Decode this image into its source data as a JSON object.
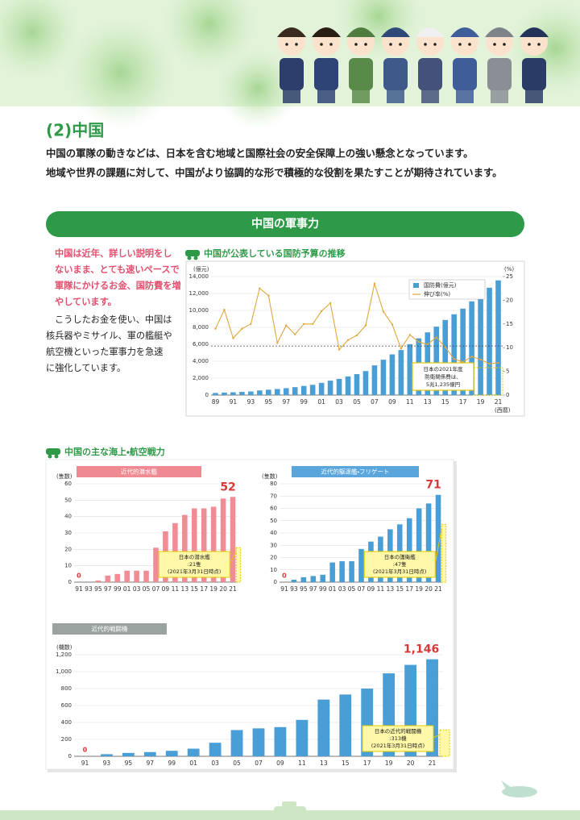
{
  "header": {
    "title": "(2)中国",
    "paragraphs": [
      "中国の軍隊の動きなどは、日本を含む地域と国際社会の安全保障上の強い懸念となっています。",
      "地域や世界の課題に対して、中国がより協調的な形で積極的な役割を果たすことが期待されています。"
    ]
  },
  "section": {
    "title": "中国の軍事力",
    "lead": [
      "中国は近年、詳しい説明をし",
      "ないまま、とても速いペースで",
      "軍隊にかけるお金、国防費を増",
      "やしています。"
    ],
    "body": [
      "こうしたお金を使い、中国は",
      "核兵器やミサイル、軍の艦艇や",
      "航空機といった軍事力を急速",
      "に強化しています。"
    ]
  },
  "subsection": {
    "title": "中国の主な海上・航空戦力"
  },
  "chart_data": [
    {
      "type": "bar",
      "title": "中国が公表している国防予算の推移",
      "categories": [
        "89",
        null,
        "91",
        null,
        "93",
        null,
        "95",
        null,
        "97",
        null,
        "99",
        null,
        "01",
        null,
        "03",
        null,
        "05",
        null,
        "07",
        null,
        "09",
        null,
        "11",
        null,
        "13",
        null,
        "15",
        null,
        "17",
        null,
        "19",
        null,
        "21"
      ],
      "series": [
        {
          "name": "国防費(億元)",
          "color": "#4a9ed6",
          "values": [
            251,
            290,
            330,
            378,
            426,
            551,
            637,
            720,
            813,
            935,
            1077,
            1212,
            1442,
            1708,
            1908,
            2200,
            2475,
            2838,
            3509,
            4178,
            4807,
            5321,
            6011,
            6703,
            7410,
            8082,
            8869,
            9544,
            10211,
            11070,
            11899,
            12680,
            13553
          ]
        },
        {
          "name": "伸び率(%)",
          "color": "#e0a83c",
          "type": "line",
          "axis": "y2",
          "values": [
            14,
            18,
            12,
            14,
            15,
            22.5,
            21,
            11,
            14.7,
            12.8,
            15,
            15,
            17.7,
            19.4,
            9.6,
            11.6,
            12.6,
            14.7,
            23.5,
            17.6,
            14.9,
            9.8,
            12.7,
            11.2,
            10.7,
            12.2,
            10.1,
            7.6,
            7,
            8.1,
            7.5,
            6.6,
            6.8
          ]
        }
      ],
      "ylim": [
        0,
        14000
      ],
      "yticks": [
        0,
        {
          "value": 2000,
          "label": "2,000"
        },
        {
          "value": 4000,
          "label": "4,000"
        },
        {
          "value": 6000,
          "label": "6,000"
        },
        {
          "value": 8000,
          "label": "8,000"
        },
        {
          "value": 10000,
          "label": "10,000"
        },
        {
          "value": 12000,
          "label": "12,000"
        },
        {
          "value": 14000,
          "label": "14,000"
        }
      ],
      "y2lim": [
        0,
        25
      ],
      "y2ticks": [
        0,
        5,
        10,
        15,
        20,
        25
      ],
      "ylabel": "(億元)",
      "y2label": "(%)",
      "xlabel": "(西暦)",
      "grid": true,
      "legend": "top-right",
      "reference_line": 5800,
      "annotation": [
        "日本の2021年度",
        "防衛関係費は、",
        "5兆1,235億円"
      ]
    },
    {
      "type": "bar",
      "title": "近代的潜水艦",
      "title_color": "#ef8a93",
      "color": "#f08c94",
      "categories": [
        "91",
        "93",
        "95",
        "97",
        "99",
        "01",
        "03",
        "05",
        "07",
        "09",
        "11",
        "13",
        "15",
        "17",
        "19",
        "20",
        "21"
      ],
      "values": [
        0,
        0,
        1,
        4,
        5,
        7,
        7,
        7,
        21,
        31,
        36,
        41,
        45,
        45,
        46,
        51,
        52
      ],
      "ylim": [
        0,
        60
      ],
      "yticks": [
        0,
        10,
        20,
        30,
        40,
        50,
        60
      ],
      "ylabel": "(隻数)",
      "grid": true,
      "japan": {
        "value": 21,
        "lines": [
          "日本の潜水艦",
          ":21隻",
          "(2021年3月31日時点)"
        ]
      }
    },
    {
      "type": "bar",
      "title": "近代的駆逐艦・フリゲート",
      "title_color": "#5aa6dc",
      "color": "#4a9ed6",
      "categories": [
        "91",
        "93",
        "95",
        "97",
        "99",
        "01",
        "03",
        "05",
        "07",
        "09",
        "11",
        "13",
        "15",
        "17",
        "19",
        "20",
        "21"
      ],
      "values": [
        0,
        2,
        4,
        5,
        6,
        16,
        17,
        17,
        27,
        33,
        37,
        43,
        47,
        52,
        60,
        64,
        71
      ],
      "ylim": [
        0,
        80
      ],
      "yticks": [
        0,
        10,
        20,
        30,
        40,
        50,
        60,
        70,
        80
      ],
      "ylabel": "(隻数)",
      "grid": true,
      "japan": {
        "value": 47,
        "lines": [
          "日本の護衛艦",
          ":47隻",
          "(2021年3月31日時点)"
        ]
      }
    },
    {
      "type": "bar",
      "title": "近代的戦闘機",
      "title_color": "#9aa3a0",
      "color": "#4a9ed6",
      "categories": [
        "91",
        "93",
        "95",
        "97",
        "99",
        "01",
        "03",
        "05",
        "07",
        "09",
        "11",
        "13",
        "15",
        "17",
        "19",
        "20",
        "21"
      ],
      "values": [
        0,
        25,
        40,
        50,
        65,
        90,
        160,
        310,
        330,
        345,
        430,
        670,
        730,
        800,
        980,
        1080,
        1146
      ],
      "value_labels": [
        null,
        null,
        null,
        null,
        null,
        null,
        null,
        null,
        null,
        null,
        null,
        null,
        null,
        null,
        null,
        null,
        "1,146"
      ],
      "ylim": [
        0,
        1200
      ],
      "yticks": [
        0,
        200,
        400,
        600,
        800,
        {
          "value": 1000,
          "label": "1,000"
        },
        {
          "value": 1200,
          "label": "1,200"
        }
      ],
      "ylabel": "(機数)",
      "grid": true,
      "japan": {
        "value": 313,
        "lines": [
          "日本の近代的戦闘機",
          ":313機",
          "(2021年3月31日時点)"
        ]
      }
    }
  ]
}
